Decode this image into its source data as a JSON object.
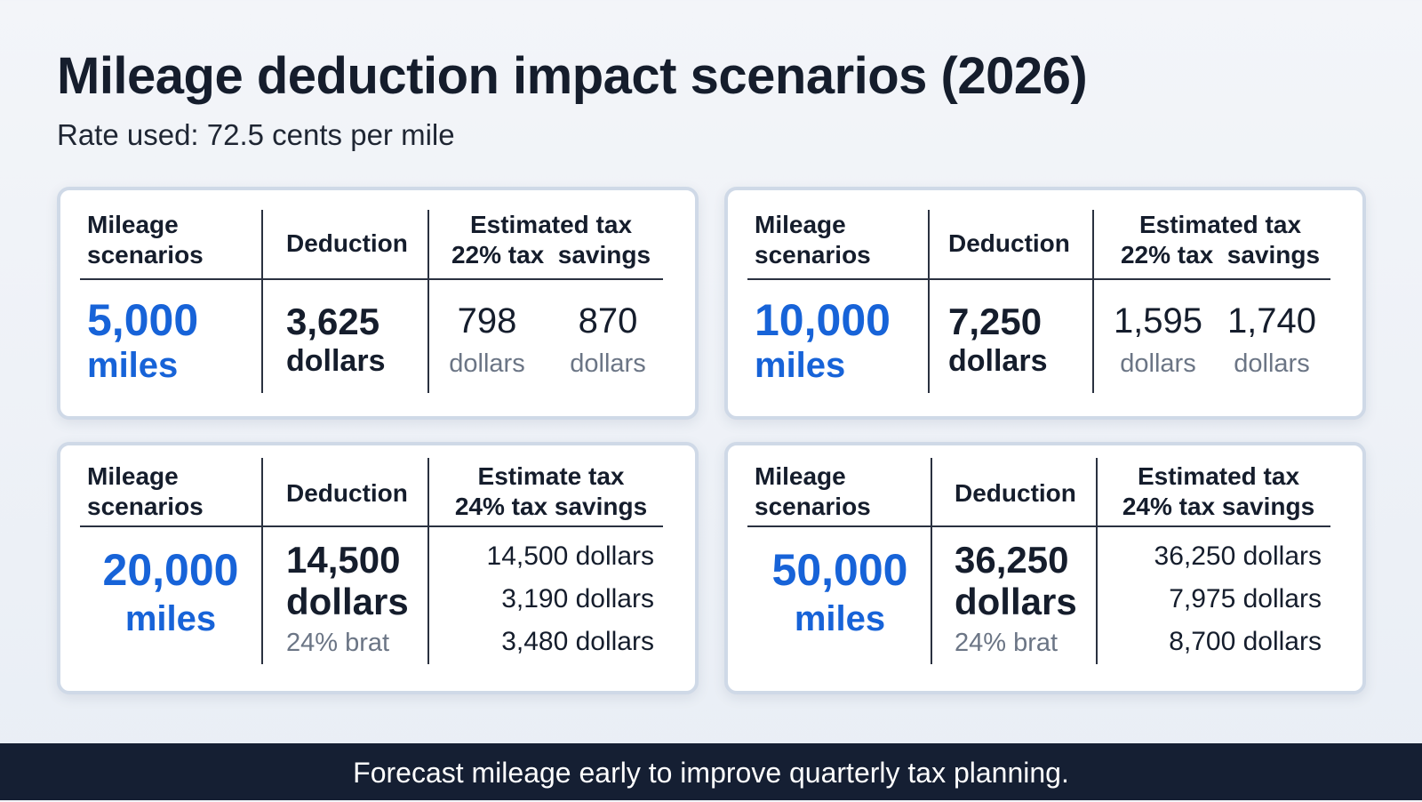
{
  "header": {
    "title": "Mileage deduction impact scenarios (2026)",
    "subtitle": "Rate used: 72.5 cents per mile"
  },
  "cards": [
    {
      "col_mileage": [
        "Mileage",
        "scenarios"
      ],
      "col_deduction": "Deduction",
      "col_savings": [
        "Estimated tax",
        "22% tax  savings"
      ],
      "miles_value": "5,000",
      "miles_unit": "miles",
      "deduction_value": "3,625",
      "deduction_unit": "dollars",
      "savings": [
        {
          "value": "798",
          "unit": "dollars"
        },
        {
          "value": "870",
          "unit": "dollars"
        }
      ]
    },
    {
      "col_mileage": [
        "Mileage",
        "scenarios"
      ],
      "col_deduction": "Deduction",
      "col_savings": [
        "Estimated tax",
        "22% tax  savings"
      ],
      "miles_value": "10,000",
      "miles_unit": "miles",
      "deduction_value": "7,250",
      "deduction_unit": "dollars",
      "savings": [
        {
          "value": "1,595",
          "unit": "dollars"
        },
        {
          "value": "1,740",
          "unit": "dollars"
        }
      ]
    },
    {
      "col_mileage": [
        "Mileage",
        "scenarios"
      ],
      "col_deduction": "Deduction",
      "col_savings": [
        "Estimate tax",
        "24% tax savings"
      ],
      "miles_value": "20,000",
      "miles_unit": "miles",
      "deduction_value": "14,500",
      "deduction_unit": "dollars",
      "bracket_note": "24% brat",
      "savings_lines": [
        "14,500 dollars",
        "3,190 dollars",
        "3,480 dollars"
      ]
    },
    {
      "col_mileage": [
        "Mileage",
        "scenarios"
      ],
      "col_deduction": "Deduction",
      "col_savings": [
        "Estimated tax",
        "24% tax savings"
      ],
      "miles_value": "50,000",
      "miles_unit": "miles",
      "deduction_value": "36,250",
      "deduction_unit": "dollars",
      "bracket_note": "24% brat",
      "savings_lines": [
        "36,250 dollars",
        "7,975 dollars",
        "8,700 dollars"
      ]
    }
  ],
  "footer": {
    "text": "Forecast mileage early to improve quarterly tax planning."
  },
  "colors": {
    "accent_blue": "#1763d8",
    "footer_bg": "#151f33",
    "card_border": "#cfd9e7"
  }
}
